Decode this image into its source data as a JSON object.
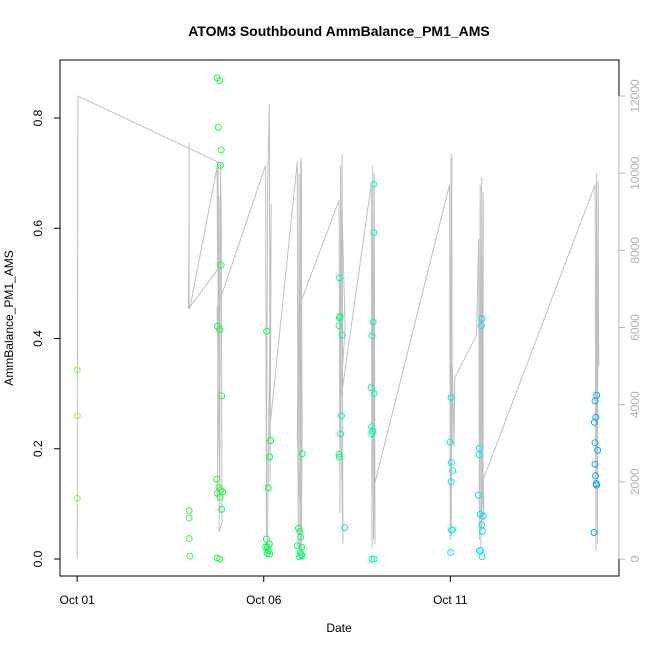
{
  "chart_data": {
    "type": "scatter",
    "title": "ATOM3 Southbound AmmBalance_PM1_AMS",
    "xlabel": "Date",
    "ylabel": "AmmBalance_PM1_AMS",
    "x_ticks": [
      {
        "label": "Oct 01",
        "value": 1
      },
      {
        "label": "Oct 06",
        "value": 6
      },
      {
        "label": "Oct 11",
        "value": 11
      }
    ],
    "x_range": [
      1,
      15.3
    ],
    "y_ticks": [
      0.0,
      0.2,
      0.4,
      0.6,
      0.8
    ],
    "ylim": [
      0,
      0.88
    ],
    "y2_ticks": [
      0,
      2000,
      4000,
      6000,
      8000,
      10000,
      12000
    ],
    "y2lim": [
      0,
      12100
    ],
    "grid": false,
    "points_color_gradient": [
      "#a0f040",
      "#00ff40",
      "#00ffe0",
      "#00a0ff"
    ],
    "line_color": "#c0c0c0",
    "points": [
      {
        "x": 1.0,
        "y": 0.343
      },
      {
        "x": 1.0,
        "y": 0.26
      },
      {
        "x": 1.0,
        "y": 0.11
      },
      {
        "x": 4.0,
        "y": 0.088
      },
      {
        "x": 4.0,
        "y": 0.074
      },
      {
        "x": 4.0,
        "y": 0.037
      },
      {
        "x": 4.02,
        "y": 0.005
      },
      {
        "x": 4.75,
        "y": 0.873
      },
      {
        "x": 4.82,
        "y": 0.868
      },
      {
        "x": 4.78,
        "y": 0.783
      },
      {
        "x": 4.86,
        "y": 0.742
      },
      {
        "x": 4.84,
        "y": 0.714
      },
      {
        "x": 4.86,
        "y": 0.533
      },
      {
        "x": 4.76,
        "y": 0.422
      },
      {
        "x": 4.82,
        "y": 0.416
      },
      {
        "x": 4.87,
        "y": 0.296
      },
      {
        "x": 4.74,
        "y": 0.145
      },
      {
        "x": 4.8,
        "y": 0.13
      },
      {
        "x": 4.85,
        "y": 0.125
      },
      {
        "x": 4.9,
        "y": 0.122
      },
      {
        "x": 4.76,
        "y": 0.119
      },
      {
        "x": 4.83,
        "y": 0.112
      },
      {
        "x": 4.87,
        "y": 0.09
      },
      {
        "x": 4.75,
        "y": 0.002
      },
      {
        "x": 4.82,
        "y": 0.0
      },
      {
        "x": 6.08,
        "y": 0.413
      },
      {
        "x": 6.18,
        "y": 0.215
      },
      {
        "x": 6.16,
        "y": 0.185
      },
      {
        "x": 6.12,
        "y": 0.129
      },
      {
        "x": 6.07,
        "y": 0.036
      },
      {
        "x": 6.15,
        "y": 0.027
      },
      {
        "x": 6.1,
        "y": 0.022
      },
      {
        "x": 6.05,
        "y": 0.022
      },
      {
        "x": 6.12,
        "y": 0.015
      },
      {
        "x": 6.09,
        "y": 0.01
      },
      {
        "x": 6.16,
        "y": 0.009
      },
      {
        "x": 6.9,
        "y": 0.024
      },
      {
        "x": 6.93,
        "y": 0.056
      },
      {
        "x": 6.97,
        "y": 0.05
      },
      {
        "x": 7.03,
        "y": 0.191
      },
      {
        "x": 6.99,
        "y": 0.04
      },
      {
        "x": 7.02,
        "y": 0.021
      },
      {
        "x": 6.98,
        "y": 0.012
      },
      {
        "x": 7.0,
        "y": 0.008
      },
      {
        "x": 7.03,
        "y": 0.006
      },
      {
        "x": 6.96,
        "y": 0.004
      },
      {
        "x": 8.03,
        "y": 0.51
      },
      {
        "x": 8.05,
        "y": 0.44
      },
      {
        "x": 8.03,
        "y": 0.438
      },
      {
        "x": 8.02,
        "y": 0.423
      },
      {
        "x": 8.1,
        "y": 0.406
      },
      {
        "x": 8.08,
        "y": 0.26
      },
      {
        "x": 8.06,
        "y": 0.227
      },
      {
        "x": 8.02,
        "y": 0.19
      },
      {
        "x": 8.03,
        "y": 0.185
      },
      {
        "x": 8.17,
        "y": 0.057
      },
      {
        "x": 8.95,
        "y": 0.68
      },
      {
        "x": 8.95,
        "y": 0.592
      },
      {
        "x": 8.93,
        "y": 0.43
      },
      {
        "x": 8.9,
        "y": 0.405
      },
      {
        "x": 8.88,
        "y": 0.311
      },
      {
        "x": 8.96,
        "y": 0.3
      },
      {
        "x": 8.89,
        "y": 0.24
      },
      {
        "x": 8.92,
        "y": 0.232
      },
      {
        "x": 8.9,
        "y": 0.227
      },
      {
        "x": 8.9,
        "y": 0.0
      },
      {
        "x": 8.96,
        "y": 0.0
      },
      {
        "x": 11.02,
        "y": 0.293
      },
      {
        "x": 10.99,
        "y": 0.212
      },
      {
        "x": 11.03,
        "y": 0.175
      },
      {
        "x": 11.06,
        "y": 0.16
      },
      {
        "x": 11.02,
        "y": 0.14
      },
      {
        "x": 11.06,
        "y": 0.053
      },
      {
        "x": 11.03,
        "y": 0.052
      },
      {
        "x": 11.01,
        "y": 0.012
      },
      {
        "x": 11.85,
        "y": 0.436
      },
      {
        "x": 11.83,
        "y": 0.423
      },
      {
        "x": 11.78,
        "y": 0.201
      },
      {
        "x": 11.77,
        "y": 0.189
      },
      {
        "x": 11.75,
        "y": 0.116
      },
      {
        "x": 11.8,
        "y": 0.081
      },
      {
        "x": 11.88,
        "y": 0.078
      },
      {
        "x": 11.84,
        "y": 0.062
      },
      {
        "x": 11.86,
        "y": 0.05
      },
      {
        "x": 11.82,
        "y": 0.015
      },
      {
        "x": 11.78,
        "y": 0.015
      },
      {
        "x": 11.85,
        "y": 0.004
      },
      {
        "x": 14.92,
        "y": 0.297
      },
      {
        "x": 14.88,
        "y": 0.287
      },
      {
        "x": 14.9,
        "y": 0.257
      },
      {
        "x": 14.86,
        "y": 0.248
      },
      {
        "x": 14.88,
        "y": 0.211
      },
      {
        "x": 14.95,
        "y": 0.197
      },
      {
        "x": 14.88,
        "y": 0.172
      },
      {
        "x": 14.89,
        "y": 0.151
      },
      {
        "x": 14.91,
        "y": 0.137
      },
      {
        "x": 14.92,
        "y": 0.134
      },
      {
        "x": 14.85,
        "y": 0.048
      }
    ],
    "line_y2": [
      [
        1.0,
        0
      ],
      [
        1.02,
        12000
      ],
      [
        4.75,
        10300
      ],
      [
        4.76,
        7500
      ],
      [
        4.0,
        6500
      ],
      [
        4.0,
        10800
      ],
      [
        4.0,
        9000
      ],
      [
        3.98,
        6500
      ],
      [
        4.02,
        6500
      ],
      [
        4.78,
        10300
      ],
      [
        4.76,
        1500
      ],
      [
        4.8,
        9400
      ],
      [
        4.82,
        1200
      ],
      [
        4.84,
        10300
      ],
      [
        4.87,
        8000
      ],
      [
        4.86,
        9000
      ],
      [
        4.88,
        1000
      ],
      [
        4.9,
        1000
      ],
      [
        4.8,
        700
      ],
      [
        4.82,
        2000
      ],
      [
        4.75,
        6500
      ],
      [
        6.05,
        10200
      ],
      [
        6.07,
        600
      ],
      [
        6.1,
        9500
      ],
      [
        6.15,
        11800
      ],
      [
        6.17,
        2000
      ],
      [
        6.2,
        9200
      ],
      [
        6.1,
        400
      ],
      [
        6.12,
        3000
      ],
      [
        6.9,
        10300
      ],
      [
        6.92,
        300
      ],
      [
        6.95,
        10000
      ],
      [
        6.97,
        200
      ],
      [
        6.99,
        10400
      ],
      [
        7.0,
        400
      ],
      [
        7.01,
        10300
      ],
      [
        7.02,
        5000
      ],
      [
        7.03,
        3500
      ],
      [
        7.01,
        200
      ],
      [
        6.9,
        3200
      ],
      [
        6.93,
        6500
      ],
      [
        8.02,
        9300
      ],
      [
        8.04,
        1200
      ],
      [
        8.06,
        10200
      ],
      [
        8.07,
        3800
      ],
      [
        8.1,
        10500
      ],
      [
        8.12,
        400
      ],
      [
        8.05,
        4800
      ],
      [
        8.1,
        9000
      ],
      [
        8.18,
        6000
      ],
      [
        8.05,
        4000
      ],
      [
        8.88,
        9700
      ],
      [
        8.9,
        300
      ],
      [
        8.92,
        10200
      ],
      [
        8.94,
        500
      ],
      [
        8.96,
        10000
      ],
      [
        8.98,
        400
      ],
      [
        8.95,
        3000
      ],
      [
        8.96,
        6500
      ],
      [
        8.96,
        1900
      ],
      [
        10.98,
        9700
      ],
      [
        11.0,
        500
      ],
      [
        11.02,
        10400
      ],
      [
        11.03,
        600
      ],
      [
        11.04,
        10500
      ],
      [
        11.05,
        3000
      ],
      [
        11.06,
        5000
      ],
      [
        11.06,
        4800
      ],
      [
        11.1,
        2900
      ],
      [
        11.12,
        4700
      ],
      [
        11.7,
        5800
      ],
      [
        11.76,
        8300
      ],
      [
        11.78,
        500
      ],
      [
        11.8,
        9700
      ],
      [
        11.82,
        300
      ],
      [
        11.84,
        9900
      ],
      [
        11.85,
        800
      ],
      [
        11.88,
        9500
      ],
      [
        11.88,
        3000
      ],
      [
        11.86,
        2000
      ],
      [
        11.9,
        1000
      ],
      [
        11.84,
        4800
      ],
      [
        11.88,
        5500
      ],
      [
        11.82,
        4000
      ],
      [
        11.86,
        2000
      ],
      [
        14.88,
        9700
      ],
      [
        14.9,
        200
      ],
      [
        14.92,
        10000
      ],
      [
        14.94,
        400
      ],
      [
        14.96,
        9800
      ],
      [
        14.98,
        5000
      ]
    ]
  }
}
